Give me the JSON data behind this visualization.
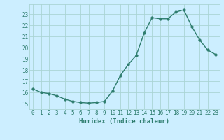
{
  "x": [
    0,
    1,
    2,
    3,
    4,
    5,
    6,
    7,
    8,
    9,
    10,
    11,
    12,
    13,
    14,
    15,
    16,
    17,
    18,
    19,
    20,
    21,
    22,
    23
  ],
  "y": [
    16.3,
    16.0,
    15.9,
    15.7,
    15.4,
    15.2,
    15.1,
    15.05,
    15.1,
    15.2,
    16.1,
    17.5,
    18.5,
    19.3,
    21.3,
    22.7,
    22.6,
    22.6,
    23.2,
    23.4,
    21.9,
    20.7,
    19.8,
    19.4
  ],
  "xlabel": "Humidex (Indice chaleur)",
  "xlim": [
    -0.5,
    23.5
  ],
  "ylim": [
    14.5,
    23.9
  ],
  "yticks": [
    15,
    16,
    17,
    18,
    19,
    20,
    21,
    22,
    23
  ],
  "xticks": [
    0,
    1,
    2,
    3,
    4,
    5,
    6,
    7,
    8,
    9,
    10,
    11,
    12,
    13,
    14,
    15,
    16,
    17,
    18,
    19,
    20,
    21,
    22,
    23
  ],
  "line_color": "#2e7d6e",
  "bg_color": "#cceeff",
  "grid_color": "#aad4d4",
  "label_color": "#2e7d6e",
  "tick_label_color": "#2e7d6e",
  "font_family": "monospace",
  "xlabel_fontsize": 6.5,
  "tick_fontsize": 5.5
}
